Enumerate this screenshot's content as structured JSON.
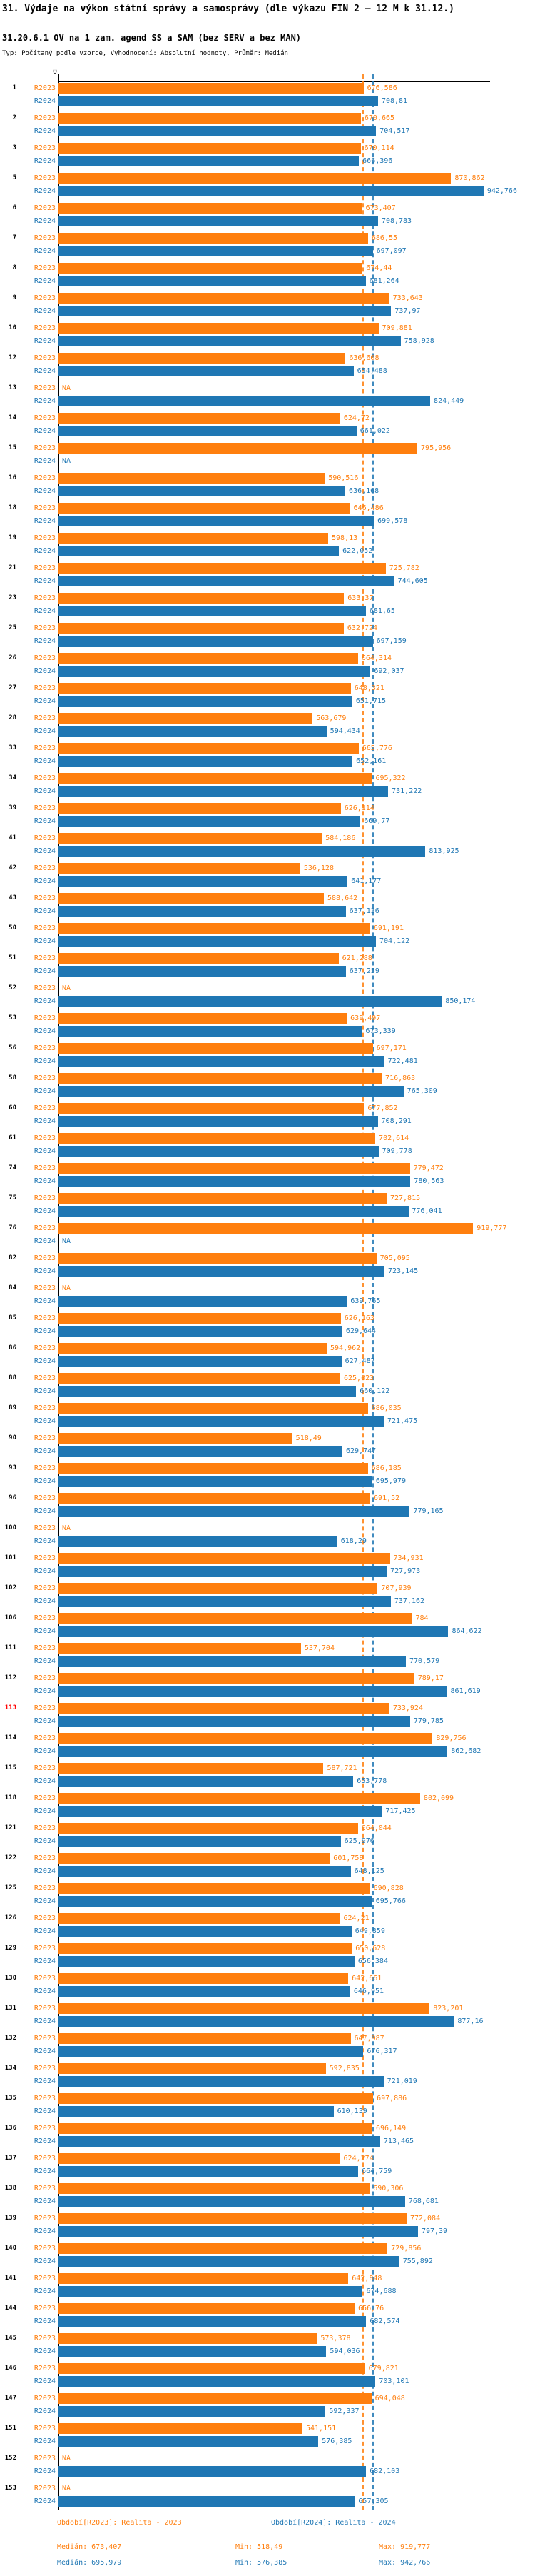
{
  "title": "31. Výdaje na výkon státní správy a samosprávy (dle výkazu FIN 2 – 12 M k 31.12.)",
  "subtitle": "31.20.6.1 OV na 1 zam. agend SS a SAM (bez SERV a bez MAN)",
  "type_line": "Typ: Počítaný podle vzorce, Vyhodnocení: Absolutní hodnoty, Průměr: Medián",
  "na_text": "NA",
  "axis": {
    "zero_label": "0"
  },
  "series": [
    {
      "id": "R2023",
      "label": "R2023",
      "color": "#ff7f0e",
      "legend": "Období[R2023]: Realita - 2023",
      "median_label": "Medián: 673,407",
      "min_label": "Min: 518,49",
      "max_label": "Max: 919,777",
      "median_value": 673.407
    },
    {
      "id": "R2024",
      "label": "R2024",
      "color": "#1f77b4",
      "legend": "Období[R2024]: Realita - 2024",
      "median_label": "Medián: 695,979",
      "min_label": "Min: 576,385",
      "max_label": "Max: 942,766",
      "median_value": 695.979
    }
  ],
  "chart_data": {
    "type": "bar",
    "orientation": "horizontal",
    "value_axis": {
      "min": 0,
      "max": 1000,
      "zero_tick": "0"
    },
    "series_names": [
      "R2023",
      "R2024"
    ],
    "highlight_color": "#ff0000",
    "na_text": "NA",
    "rows": [
      {
        "id": "1",
        "R2023": "676,586",
        "R2024": "708,81"
      },
      {
        "id": "2",
        "R2023": "670,665",
        "R2024": "704,517"
      },
      {
        "id": "3",
        "R2023": "670,114",
        "R2024": "666,396"
      },
      {
        "id": "5",
        "R2023": "870,862",
        "R2024": "942,766"
      },
      {
        "id": "6",
        "R2023": "673,407",
        "R2024": "708,783"
      },
      {
        "id": "7",
        "R2023": "686,55",
        "R2024": "697,097"
      },
      {
        "id": "8",
        "R2023": "674,44",
        "R2024": "681,264"
      },
      {
        "id": "9",
        "R2023": "733,643",
        "R2024": "737,97"
      },
      {
        "id": "10",
        "R2023": "709,881",
        "R2024": "758,928"
      },
      {
        "id": "12",
        "R2023": "636,608",
        "R2024": "654,488"
      },
      {
        "id": "13",
        "R2023": "NA",
        "R2024": "824,449"
      },
      {
        "id": "14",
        "R2023": "624,72",
        "R2024": "661,022"
      },
      {
        "id": "15",
        "R2023": "795,956",
        "R2024": "NA"
      },
      {
        "id": "16",
        "R2023": "590,516",
        "R2024": "636,168"
      },
      {
        "id": "18",
        "R2023": "646,486",
        "R2024": "699,578"
      },
      {
        "id": "19",
        "R2023": "598,13",
        "R2024": "622,052"
      },
      {
        "id": "21",
        "R2023": "725,782",
        "R2024": "744,605"
      },
      {
        "id": "23",
        "R2023": "633,37",
        "R2024": "681,65"
      },
      {
        "id": "25",
        "R2023": "632,724",
        "R2024": "697,159"
      },
      {
        "id": "26",
        "R2023": "664,314",
        "R2024": "692,037"
      },
      {
        "id": "27",
        "R2023": "648,321",
        "R2024": "651,715"
      },
      {
        "id": "28",
        "R2023": "563,679",
        "R2024": "594,434"
      },
      {
        "id": "33",
        "R2023": "665,776",
        "R2024": "652,161"
      },
      {
        "id": "34",
        "R2023": "695,322",
        "R2024": "731,222"
      },
      {
        "id": "39",
        "R2023": "626,114",
        "R2024": "669,77"
      },
      {
        "id": "41",
        "R2023": "584,186",
        "R2024": "813,925"
      },
      {
        "id": "42",
        "R2023": "536,128",
        "R2024": "641,177"
      },
      {
        "id": "43",
        "R2023": "588,642",
        "R2024": "637,136"
      },
      {
        "id": "50",
        "R2023": "691,191",
        "R2024": "704,122"
      },
      {
        "id": "51",
        "R2023": "621,288",
        "R2024": "637,259"
      },
      {
        "id": "52",
        "R2023": "NA",
        "R2024": "850,174"
      },
      {
        "id": "53",
        "R2023": "639,497",
        "R2024": "673,339"
      },
      {
        "id": "56",
        "R2023": "697,171",
        "R2024": "722,481"
      },
      {
        "id": "58",
        "R2023": "716,863",
        "R2024": "765,309"
      },
      {
        "id": "60",
        "R2023": "677,852",
        "R2024": "708,291"
      },
      {
        "id": "61",
        "R2023": "702,614",
        "R2024": "709,778"
      },
      {
        "id": "74",
        "R2023": "779,472",
        "R2024": "780,563"
      },
      {
        "id": "75",
        "R2023": "727,815",
        "R2024": "776,041"
      },
      {
        "id": "76",
        "R2023": "919,777",
        "R2024": "NA"
      },
      {
        "id": "82",
        "R2023": "705,095",
        "R2024": "723,145"
      },
      {
        "id": "84",
        "R2023": "NA",
        "R2024": "639,765"
      },
      {
        "id": "85",
        "R2023": "626,163",
        "R2024": "629,644"
      },
      {
        "id": "86",
        "R2023": "594,962",
        "R2024": "627,487"
      },
      {
        "id": "88",
        "R2023": "625,023",
        "R2024": "660,122"
      },
      {
        "id": "89",
        "R2023": "686,035",
        "R2024": "721,475"
      },
      {
        "id": "90",
        "R2023": "518,49",
        "R2024": "629,747"
      },
      {
        "id": "93",
        "R2023": "686,185",
        "R2024": "695,979"
      },
      {
        "id": "96",
        "R2023": "691,52",
        "R2024": "779,165"
      },
      {
        "id": "100",
        "R2023": "NA",
        "R2024": "618,29"
      },
      {
        "id": "101",
        "R2023": "734,931",
        "R2024": "727,973"
      },
      {
        "id": "102",
        "R2023": "707,939",
        "R2024": "737,162"
      },
      {
        "id": "106",
        "R2023": "784",
        "R2024": "864,622"
      },
      {
        "id": "111",
        "R2023": "537,704",
        "R2024": "770,579"
      },
      {
        "id": "112",
        "R2023": "789,17",
        "R2024": "861,619"
      },
      {
        "id": "113",
        "R2023": "733,924",
        "R2024": "779,785",
        "highlight": true
      },
      {
        "id": "114",
        "R2023": "829,756",
        "R2024": "862,682"
      },
      {
        "id": "115",
        "R2023": "587,721",
        "R2024": "653,778"
      },
      {
        "id": "118",
        "R2023": "802,099",
        "R2024": "717,425"
      },
      {
        "id": "121",
        "R2023": "664,044",
        "R2024": "625,976"
      },
      {
        "id": "122",
        "R2023": "601,758",
        "R2024": "648,125"
      },
      {
        "id": "125",
        "R2023": "690,828",
        "R2024": "695,766"
      },
      {
        "id": "126",
        "R2023": "624,21",
        "R2024": "649,859"
      },
      {
        "id": "129",
        "R2023": "650,628",
        "R2024": "656,384"
      },
      {
        "id": "130",
        "R2023": "642,661",
        "R2024": "646,951"
      },
      {
        "id": "131",
        "R2023": "823,201",
        "R2024": "877,16"
      },
      {
        "id": "132",
        "R2023": "647,987",
        "R2024": "676,317"
      },
      {
        "id": "134",
        "R2023": "592,835",
        "R2024": "721,019"
      },
      {
        "id": "135",
        "R2023": "697,886",
        "R2024": "610,139"
      },
      {
        "id": "136",
        "R2023": "696,149",
        "R2024": "713,465"
      },
      {
        "id": "137",
        "R2023": "624,274",
        "R2024": "664,759"
      },
      {
        "id": "138",
        "R2023": "690,306",
        "R2024": "768,681"
      },
      {
        "id": "139",
        "R2023": "772,084",
        "R2024": "797,39"
      },
      {
        "id": "140",
        "R2023": "729,856",
        "R2024": "755,892"
      },
      {
        "id": "141",
        "R2023": "642,848",
        "R2024": "674,688"
      },
      {
        "id": "144",
        "R2023": "656,76",
        "R2024": "682,574"
      },
      {
        "id": "145",
        "R2023": "573,378",
        "R2024": "594,036"
      },
      {
        "id": "146",
        "R2023": "679,821",
        "R2024": "703,101"
      },
      {
        "id": "147",
        "R2023": "694,048",
        "R2024": "592,337"
      },
      {
        "id": "151",
        "R2023": "541,151",
        "R2024": "576,385"
      },
      {
        "id": "152",
        "R2023": "NA",
        "R2024": "682,103"
      },
      {
        "id": "153",
        "R2023": "NA",
        "R2024": "657,305"
      }
    ]
  },
  "footer": {
    "legend_2023": "Období[R2023]: Realita - 2023",
    "legend_2024": "Období[R2024]: Realita - 2024",
    "stats_2023": {
      "median": "Medián: 673,407",
      "min": "Min: 518,49",
      "max": "Max: 919,777"
    },
    "stats_2024": {
      "median": "Medián: 695,979",
      "min": "Min: 576,385",
      "max": "Max: 942,766"
    }
  }
}
